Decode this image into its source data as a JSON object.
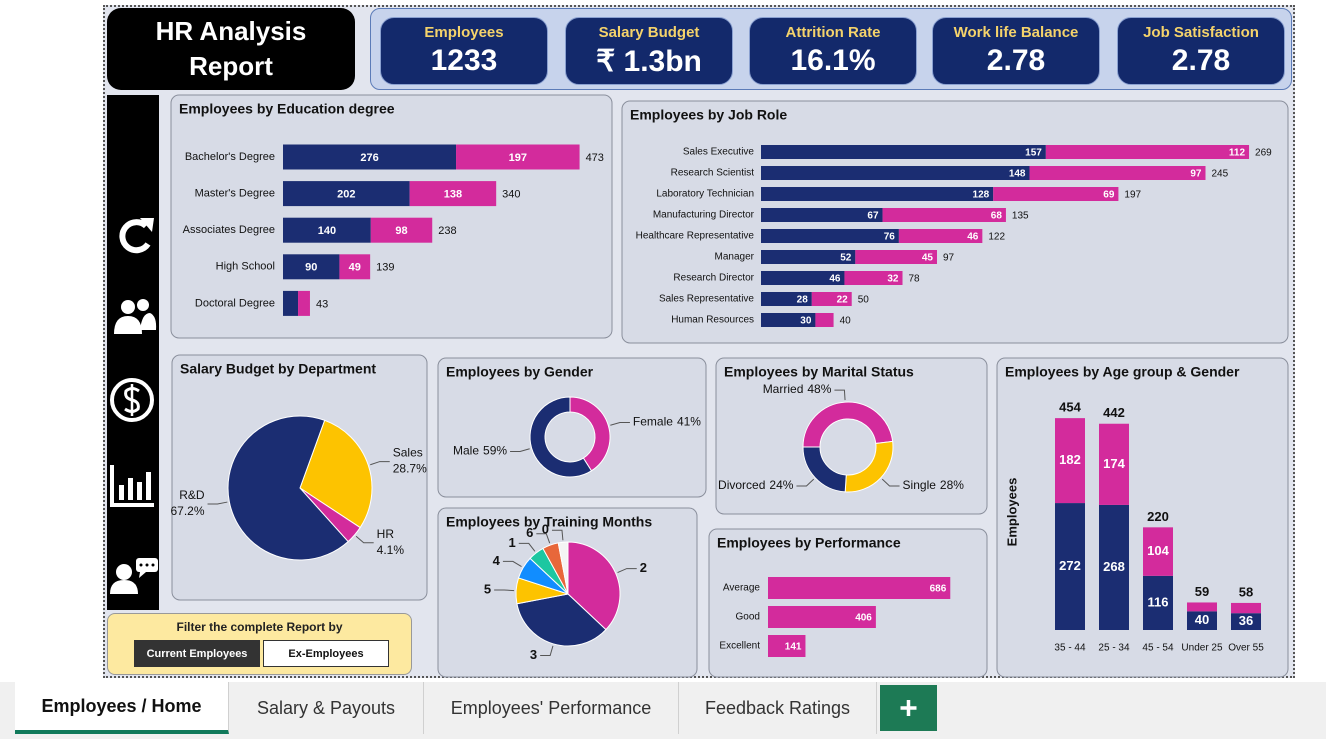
{
  "header": {
    "title": "HR Analysis Report"
  },
  "kpis": [
    {
      "label": "Employees",
      "value": 1233
    },
    {
      "label": "Salary Budget",
      "value": "₹ 1.3bn"
    },
    {
      "label": "Attrition Rate",
      "value": "16.1%"
    },
    {
      "label": "Work life Balance",
      "value": 2.78
    },
    {
      "label": "Job Satisfaction",
      "value": 2.78
    }
  ],
  "chart_data": [
    {
      "type": "stacked_barh",
      "title": "Employees by Education degree",
      "categories": [
        "Bachelor's Degree",
        "Master's Degree",
        "Associates Degree",
        "High School",
        "Doctoral Degree"
      ],
      "series": [
        {
          "color": "#1b2d72",
          "values": [
            276,
            202,
            140,
            90,
            24
          ]
        },
        {
          "color": "#d32b9c",
          "values": [
            197,
            138,
            98,
            49,
            19
          ]
        }
      ],
      "totals": [
        473,
        340,
        238,
        139,
        43
      ],
      "xlim": [
        0,
        500
      ]
    },
    {
      "type": "stacked_barh",
      "title": "Employees by Job Role",
      "categories": [
        "Sales Executive",
        "Research Scientist",
        "Laboratory Technician",
        "Manufacturing Director",
        "Healthcare Representative",
        "Manager",
        "Research Director",
        "Sales Representative",
        "Human Resources"
      ],
      "series": [
        {
          "color": "#1b2d72",
          "values": [
            157,
            148,
            128,
            67,
            76,
            52,
            46,
            28,
            30
          ]
        },
        {
          "color": "#d32b9c",
          "values": [
            112,
            97,
            69,
            68,
            46,
            45,
            32,
            22,
            10
          ]
        }
      ],
      "totals": [
        269,
        245,
        197,
        135,
        122,
        97,
        78,
        50,
        40
      ],
      "xlim": [
        0,
        280
      ]
    },
    {
      "type": "pie",
      "title": "Salary Budget by Department",
      "categories": [
        "Sales",
        "HR",
        "R&D"
      ],
      "values": [
        28.7,
        4.1,
        67.2
      ],
      "value_labels": [
        "28.7%",
        "4.1%",
        "67.2%"
      ],
      "colors": [
        "#fdc300",
        "#d32b9c",
        "#1b2d72"
      ]
    },
    {
      "type": "donut",
      "title": "Employees by Gender",
      "categories": [
        "Female",
        "Male"
      ],
      "values": [
        41,
        59
      ],
      "value_labels": [
        "41%",
        "59%"
      ],
      "colors": [
        "#d32b9c",
        "#1b2d72"
      ]
    },
    {
      "type": "donut",
      "title": "Employees by Marital Status",
      "categories": [
        "Married",
        "Single",
        "Divorced"
      ],
      "values": [
        48,
        28,
        24
      ],
      "value_labels": [
        "48%",
        "28%",
        "24%"
      ],
      "colors": [
        "#d32b9c",
        "#fdc300",
        "#1b2d72"
      ]
    },
    {
      "type": "stacked_bar",
      "title": "Employees by Age group & Gender",
      "y_label": "Employees",
      "categories": [
        "35 - 44",
        "25 - 34",
        "45 - 54",
        "Under 25",
        "Over 55"
      ],
      "series": [
        {
          "color": "#1b2d72",
          "values": [
            272,
            268,
            116,
            40,
            36
          ]
        },
        {
          "color": "#d32b9c",
          "values": [
            182,
            174,
            104,
            19,
            22
          ]
        }
      ],
      "totals": [
        454,
        442,
        220,
        59,
        58
      ],
      "ylim": [
        0,
        480
      ]
    },
    {
      "type": "pie",
      "title": "Employees by Training Months",
      "categories": [
        "2",
        "3",
        "5",
        "4",
        "1",
        "6",
        "0"
      ],
      "values": [
        37,
        35,
        8,
        7,
        5,
        5,
        3
      ],
      "colors": [
        "#d32b9c",
        "#1b2d72",
        "#fdc300",
        "#118dff",
        "#1cc7a1",
        "#e8673a",
        "#f4f4f4"
      ]
    },
    {
      "type": "barh",
      "title": "Employees by Performance",
      "categories": [
        "Average",
        "Good",
        "Excellent"
      ],
      "values": [
        686,
        406,
        141
      ],
      "color": "#d32b9c",
      "xlim": [
        0,
        700
      ]
    }
  ],
  "filter": {
    "label": "Filter the complete Report by",
    "options": [
      "Current Employees",
      "Ex-Employees"
    ]
  },
  "tabs": [
    "Employees / Home",
    "Salary & Payouts",
    "Employees' Performance",
    "Feedback Ratings"
  ]
}
